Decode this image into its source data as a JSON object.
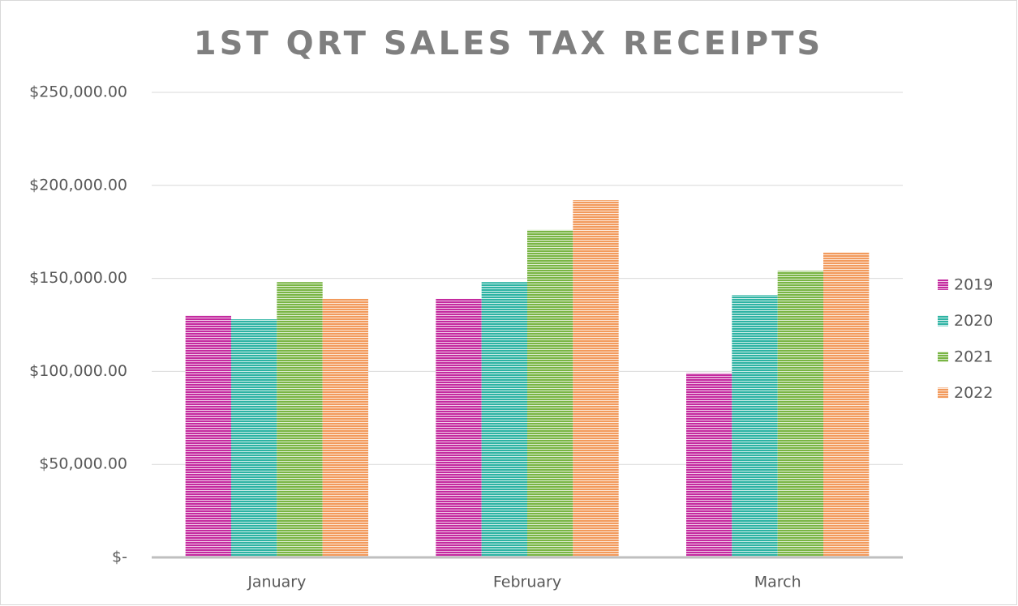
{
  "chart_data": {
    "type": "bar",
    "title": "1ST QRT SALES TAX RECEIPTS",
    "categories": [
      "January",
      "February",
      "March"
    ],
    "series": [
      {
        "name": "2019",
        "color": "#c42a9f",
        "values": [
          130000,
          139000,
          99000
        ]
      },
      {
        "name": "2020",
        "color": "#2db3a3",
        "values": [
          128000,
          148000,
          141000
        ]
      },
      {
        "name": "2021",
        "color": "#79b544",
        "values": [
          148000,
          176000,
          154000
        ]
      },
      {
        "name": "2022",
        "color": "#f29a5c",
        "values": [
          139000,
          192000,
          164000
        ]
      }
    ],
    "ylim": [
      0,
      250000
    ],
    "yticks": [
      {
        "value": 0,
        "label": "$-"
      },
      {
        "value": 50000,
        "label": "$50,000.00"
      },
      {
        "value": 100000,
        "label": "$100,000.00"
      },
      {
        "value": 150000,
        "label": "$150,000.00"
      },
      {
        "value": 200000,
        "label": "$200,000.00"
      },
      {
        "value": 250000,
        "label": "$250,000.00"
      }
    ],
    "grid": true,
    "legend": "right"
  }
}
